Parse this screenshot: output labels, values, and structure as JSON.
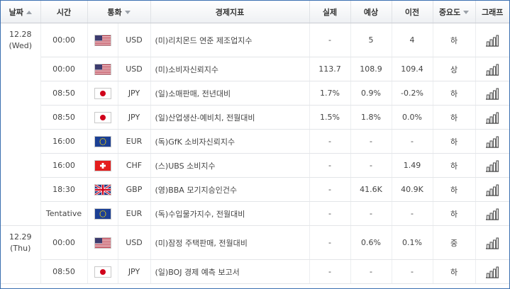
{
  "headers": {
    "date": "날짜",
    "time": "시간",
    "currency": "통화",
    "indicator": "경제지표",
    "actual": "실제",
    "forecast": "예상",
    "previous": "이전",
    "importance": "중요도",
    "graph": "그래프"
  },
  "dates": [
    {
      "day": "12.28",
      "weekday": "(Wed)"
    },
    {
      "day": "12.29",
      "weekday": "(Thu)"
    }
  ],
  "rows": [
    {
      "time": "00:00",
      "flag": "us-flag-icon",
      "currency": "USD",
      "indicator": "(미)리치몬드 연준 제조업지수",
      "actual": "-",
      "forecast": "5",
      "previous": "4",
      "importance": "하"
    },
    {
      "time": "00:00",
      "flag": "us-flag-icon",
      "currency": "USD",
      "indicator": "(미)소비자신뢰지수",
      "actual": "113.7",
      "forecast": "108.9",
      "previous": "109.4",
      "importance": "상"
    },
    {
      "time": "08:50",
      "flag": "jp-flag-icon",
      "currency": "JPY",
      "indicator": "(일)소매판매, 전년대비",
      "actual": "1.7%",
      "forecast": "0.9%",
      "previous": "-0.2%",
      "importance": "하"
    },
    {
      "time": "08:50",
      "flag": "jp-flag-icon",
      "currency": "JPY",
      "indicator": "(일)산업생산-예비치, 전월대비",
      "actual": "1.5%",
      "forecast": "1.8%",
      "previous": "0.0%",
      "importance": "하"
    },
    {
      "time": "16:00",
      "flag": "eu-flag-icon",
      "currency": "EUR",
      "indicator": "(독)GfK 소비자신뢰지수",
      "actual": "-",
      "forecast": "-",
      "previous": "-",
      "importance": "하"
    },
    {
      "time": "16:00",
      "flag": "ch-flag-icon",
      "currency": "CHF",
      "indicator": "(스)UBS 소비지수",
      "actual": "-",
      "forecast": "-",
      "previous": "1.49",
      "importance": "하"
    },
    {
      "time": "18:30",
      "flag": "gb-flag-icon",
      "currency": "GBP",
      "indicator": "(영)BBA 모기지승인건수",
      "actual": "-",
      "forecast": "41.6K",
      "previous": "40.9K",
      "importance": "하"
    },
    {
      "time": "Tentative",
      "flag": "eu-flag-icon",
      "currency": "EUR",
      "indicator": "(독)수입물가지수, 전월대비",
      "actual": "-",
      "forecast": "-",
      "previous": "-",
      "importance": "하"
    },
    {
      "time": "00:00",
      "flag": "us-flag-icon",
      "currency": "USD",
      "indicator": "(미)잠정 주택판매, 전월대비",
      "actual": "-",
      "forecast": "0.6%",
      "previous": "0.1%",
      "importance": "중"
    },
    {
      "time": "08:50",
      "flag": "jp-flag-icon",
      "currency": "JPY",
      "indicator": "(일)BOJ 경제 예측 보고서",
      "actual": "-",
      "forecast": "-",
      "previous": "-",
      "importance": "하"
    }
  ],
  "colors": {
    "border": "#3b6fb0",
    "graph_icon": "#555555"
  }
}
